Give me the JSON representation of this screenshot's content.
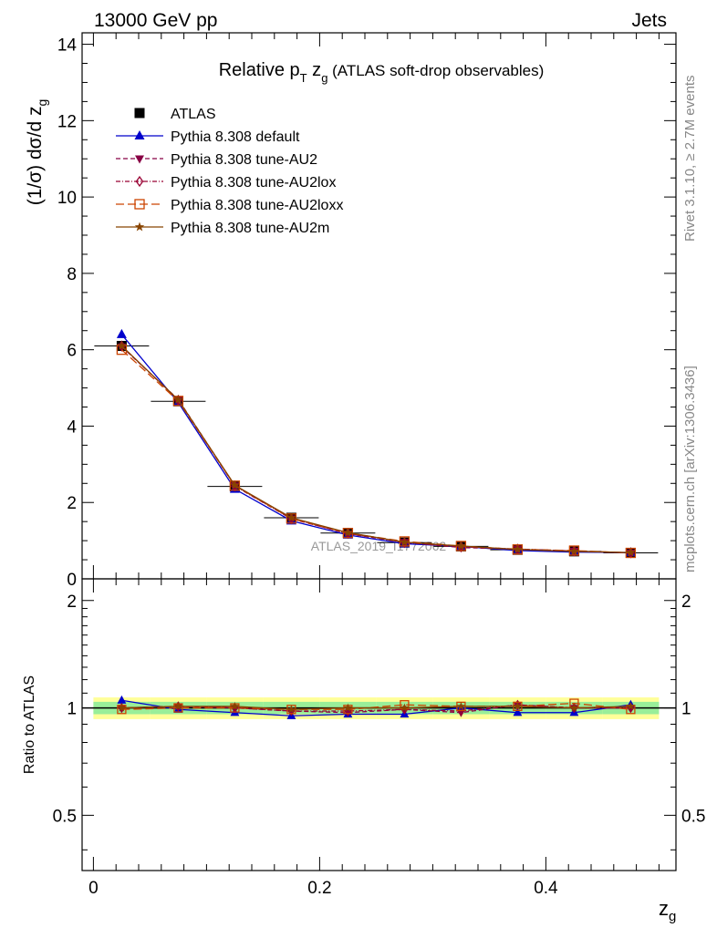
{
  "header": {
    "left": "13000 GeV pp",
    "right": "Jets"
  },
  "title": {
    "main": "Relative p",
    "sub_T": "T",
    "mid": " z",
    "sub_g": "g",
    "suffix": " (ATLAS soft-drop observables)"
  },
  "side_labels": {
    "rivet": "Rivet 3.1.10, ≥ 2.7M events",
    "mcplots": "mcplots.cern.ch [arXiv:1306.3436]"
  },
  "watermark": "ATLAS_2019_I1772062",
  "axes": {
    "ylabel_main": "(1/σ) dσ/d z",
    "ylabel_main_sub": "g",
    "ylabel_ratio": "Ratio to ATLAS",
    "xlabel": "z",
    "xlabel_sub": "g"
  },
  "legend": [
    {
      "name": "ATLAS",
      "color": "#000000",
      "marker": "square-filled",
      "dash": "none"
    },
    {
      "name": "Pythia 8.308 default",
      "color": "#0000cc",
      "marker": "triangle-filled",
      "dash": "solid"
    },
    {
      "name": "Pythia 8.308 tune-AU2",
      "color": "#880044",
      "marker": "triangle-down-filled",
      "dash": "dashed"
    },
    {
      "name": "Pythia 8.308 tune-AU2lox",
      "color": "#990033",
      "marker": "diamond-open",
      "dash": "dashdot"
    },
    {
      "name": "Pythia 8.308 tune-AU2loxx",
      "color": "#cc4400",
      "marker": "square-open",
      "dash": "longdash"
    },
    {
      "name": "Pythia 8.308 tune-AU2m",
      "color": "#884400",
      "marker": "star",
      "dash": "solid"
    }
  ],
  "chart_data": [
    {
      "type": "line",
      "panel": "main",
      "x": [
        0.025,
        0.075,
        0.125,
        0.175,
        0.225,
        0.275,
        0.325,
        0.375,
        0.425,
        0.475
      ],
      "xlim": [
        -0.01,
        0.515
      ],
      "ylim": [
        0,
        14.3
      ],
      "yticks": [
        0,
        2,
        4,
        6,
        8,
        10,
        12,
        14
      ],
      "xticks": [
        0,
        0.2,
        0.4
      ],
      "series": [
        {
          "name": "ATLAS",
          "values": [
            6.1,
            4.65,
            2.42,
            1.6,
            1.2,
            0.95,
            0.85,
            0.76,
            0.72,
            0.68
          ]
        },
        {
          "name": "Pythia 8.308 default",
          "values": [
            6.4,
            4.62,
            2.35,
            1.52,
            1.15,
            0.92,
            0.85,
            0.74,
            0.7,
            0.69
          ]
        },
        {
          "name": "Pythia 8.308 tune-AU2",
          "values": [
            6.08,
            4.7,
            2.44,
            1.58,
            1.18,
            0.96,
            0.82,
            0.78,
            0.73,
            0.68
          ]
        },
        {
          "name": "Pythia 8.308 tune-AU2lox",
          "values": [
            6.1,
            4.68,
            2.43,
            1.57,
            1.19,
            0.95,
            0.84,
            0.78,
            0.73,
            0.68
          ]
        },
        {
          "name": "Pythia 8.308 tune-AU2loxx",
          "values": [
            6.0,
            4.66,
            2.44,
            1.58,
            1.2,
            0.98,
            0.86,
            0.77,
            0.74,
            0.68
          ]
        },
        {
          "name": "Pythia 8.308 tune-AU2m",
          "values": [
            6.1,
            4.69,
            2.45,
            1.6,
            1.21,
            0.96,
            0.86,
            0.77,
            0.72,
            0.69
          ]
        }
      ]
    },
    {
      "type": "line",
      "panel": "ratio",
      "x": [
        0.025,
        0.075,
        0.125,
        0.175,
        0.225,
        0.275,
        0.325,
        0.375,
        0.425,
        0.475
      ],
      "xlim": [
        -0.01,
        0.515
      ],
      "ylim": [
        0.35,
        2.3
      ],
      "yticks": [
        0.5,
        1,
        2
      ],
      "xticks": [
        0,
        0.2,
        0.4
      ],
      "bands": {
        "outer": [
          0.07,
          0.07,
          0.07,
          0.07,
          0.07,
          0.07,
          0.07,
          0.07,
          0.07,
          0.07
        ],
        "inner": [
          0.04,
          0.04,
          0.04,
          0.04,
          0.04,
          0.04,
          0.04,
          0.04,
          0.04,
          0.04
        ]
      },
      "series": [
        {
          "name": "Pythia 8.308 default",
          "values": [
            1.05,
            0.99,
            0.97,
            0.95,
            0.96,
            0.96,
            1.0,
            0.97,
            0.97,
            1.02
          ]
        },
        {
          "name": "Pythia 8.308 tune-AU2",
          "values": [
            1.0,
            1.01,
            1.0,
            0.98,
            0.97,
            0.99,
            0.97,
            1.02,
            1.0,
            1.0
          ]
        },
        {
          "name": "Pythia 8.308 tune-AU2lox",
          "values": [
            1.0,
            1.01,
            1.0,
            0.98,
            0.98,
            0.99,
            0.98,
            1.02,
            1.0,
            1.0
          ]
        },
        {
          "name": "Pythia 8.308 tune-AU2loxx",
          "values": [
            0.99,
            1.0,
            1.0,
            0.99,
            0.99,
            1.02,
            1.01,
            1.01,
            1.03,
            0.99
          ]
        },
        {
          "name": "Pythia 8.308 tune-AU2m",
          "values": [
            1.0,
            1.01,
            1.01,
            0.99,
            1.0,
            1.0,
            1.01,
            1.01,
            1.0,
            1.01
          ]
        }
      ]
    }
  ]
}
